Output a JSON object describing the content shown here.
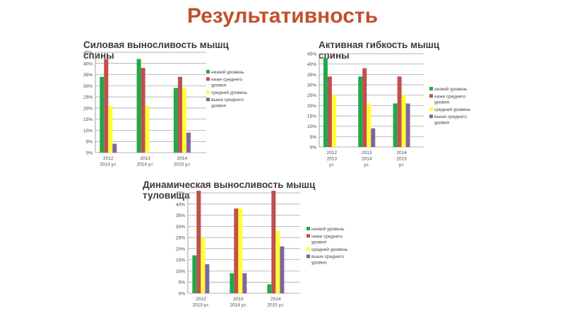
{
  "page_title": "Результативность",
  "legend_colors": [
    "#22a84a",
    "#c0504d",
    "#ffff33",
    "#8064a2"
  ],
  "chart_data": [
    {
      "type": "bar",
      "title": "Силовая выносливость мышц спины",
      "categories": [
        [
          "2012",
          "2013 у.г."
        ],
        [
          "2013",
          "2014 у.г."
        ],
        [
          "2014",
          "2015 у.г."
        ]
      ],
      "ylim": [
        0,
        0.45
      ],
      "yticks": [
        "0%",
        "5%",
        "10%",
        "15%",
        "20%",
        "25%",
        "30%",
        "35%",
        "40%",
        "45%"
      ],
      "legend_position": "right",
      "grid": true,
      "series": [
        {
          "name": "низкий уровень",
          "color": "#22a84a",
          "values": [
            0.34,
            0.42,
            0.29
          ]
        },
        {
          "name": "ниже среднего уровня",
          "color": "#c0504d",
          "values": [
            0.42,
            0.38,
            0.34
          ]
        },
        {
          "name": "средний уровень",
          "color": "#ffff33",
          "values": [
            0.21,
            0.21,
            0.29
          ]
        },
        {
          "name": "выше среднего уровня",
          "color": "#8064a2",
          "values": [
            0.04,
            0.0,
            0.09
          ]
        }
      ]
    },
    {
      "type": "bar",
      "title": "Активная гибкость мышц спины",
      "categories": [
        [
          "2012",
          "2013",
          "у.г."
        ],
        [
          "2013",
          "2014",
          "у.г."
        ],
        [
          "2014",
          "2015",
          "у.г."
        ]
      ],
      "ylim": [
        0,
        0.45
      ],
      "yticks": [
        "0%",
        "5%",
        "10%",
        "15%",
        "20%",
        "25%",
        "30%",
        "35%",
        "40%",
        "45%"
      ],
      "legend_position": "right",
      "grid": true,
      "series": [
        {
          "name": "низкий уровень",
          "color": "#22a84a",
          "values": [
            0.43,
            0.34,
            0.21
          ]
        },
        {
          "name": "ниже среднего уровня",
          "color": "#c0504d",
          "values": [
            0.34,
            0.38,
            0.34
          ]
        },
        {
          "name": "средний уровень",
          "color": "#ffff33",
          "values": [
            0.25,
            0.21,
            0.25
          ]
        },
        {
          "name": "выше среднего уровня",
          "color": "#8064a2",
          "values": [
            0.0,
            0.09,
            0.21
          ]
        }
      ]
    },
    {
      "type": "bar",
      "title": "Динамическая выносливость мышц туловища",
      "categories": [
        [
          "2012",
          "2013 у.г."
        ],
        [
          "2013",
          "2014 у.г."
        ],
        [
          "2014",
          "2015 у.г."
        ]
      ],
      "ylim": [
        0,
        0.45
      ],
      "yticks": [
        "0%",
        "5%",
        "10%",
        "15%",
        "20%",
        "25%",
        "30%",
        "35%",
        "40%",
        "45%"
      ],
      "legend_position": "right",
      "grid": true,
      "series": [
        {
          "name": "низкий уровень",
          "color": "#22a84a",
          "values": [
            0.17,
            0.09,
            0.04
          ]
        },
        {
          "name": "ниже среднего уровня",
          "color": "#c0504d",
          "values": [
            0.46,
            0.38,
            0.46
          ]
        },
        {
          "name": "средний уровень",
          "color": "#ffff33",
          "values": [
            0.25,
            0.38,
            0.28
          ]
        },
        {
          "name": "выше среднего уровня",
          "color": "#8064a2",
          "values": [
            0.13,
            0.09,
            0.21
          ]
        }
      ]
    }
  ]
}
